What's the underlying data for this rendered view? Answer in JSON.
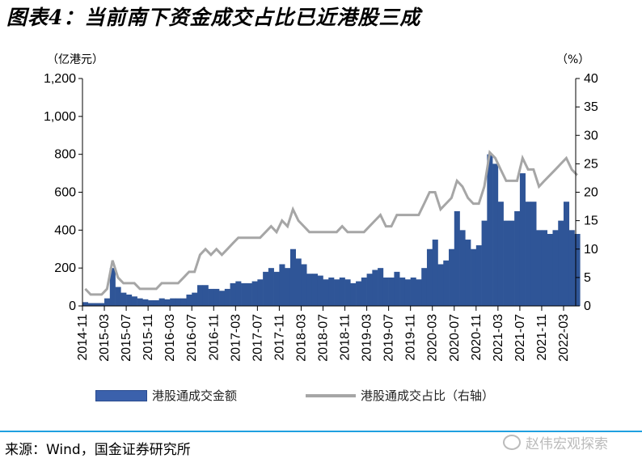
{
  "title": "图表4：当前南下资金成交占比已近港股三成",
  "source": "来源：Wind，国金证券研究所",
  "watermark": "赵伟宏观探索",
  "chart_data": {
    "type": "bar+line",
    "left_unit": "（亿港元）",
    "right_unit": "（%）",
    "ylim_left": [
      0,
      1200
    ],
    "ylim_right": [
      0,
      40
    ],
    "yticks_left": [
      "0",
      "200",
      "400",
      "600",
      "800",
      "1,000",
      "1,200"
    ],
    "yticks_right": [
      "0",
      "5",
      "10",
      "15",
      "20",
      "25",
      "30",
      "35",
      "40"
    ],
    "x_tick_labels": [
      "2014-11",
      "2015-03",
      "2015-07",
      "2015-11",
      "2016-03",
      "2016-07",
      "2016-11",
      "2017-03",
      "2017-07",
      "2017-11",
      "2018-03",
      "2018-07",
      "2018-11",
      "2019-03",
      "2019-07",
      "2019-11",
      "2020-03",
      "2020-07",
      "2020-11",
      "2021-03",
      "2021-07",
      "2021-11",
      "2022-03"
    ],
    "grid": false,
    "legend_position": "bottom",
    "colors": {
      "amount": "#2f5597",
      "ratio": "#a6a6a6"
    },
    "categories": [
      "2014-11",
      "2014-12",
      "2015-01",
      "2015-02",
      "2015-03",
      "2015-04",
      "2015-05",
      "2015-06",
      "2015-07",
      "2015-08",
      "2015-09",
      "2015-10",
      "2015-11",
      "2015-12",
      "2016-01",
      "2016-02",
      "2016-03",
      "2016-04",
      "2016-05",
      "2016-06",
      "2016-07",
      "2016-08",
      "2016-09",
      "2016-10",
      "2016-11",
      "2016-12",
      "2017-01",
      "2017-02",
      "2017-03",
      "2017-04",
      "2017-05",
      "2017-06",
      "2017-07",
      "2017-08",
      "2017-09",
      "2017-10",
      "2017-11",
      "2017-12",
      "2018-01",
      "2018-02",
      "2018-03",
      "2018-04",
      "2018-05",
      "2018-06",
      "2018-07",
      "2018-08",
      "2018-09",
      "2018-10",
      "2018-11",
      "2018-12",
      "2019-01",
      "2019-02",
      "2019-03",
      "2019-04",
      "2019-05",
      "2019-06",
      "2019-07",
      "2019-08",
      "2019-09",
      "2019-10",
      "2019-11",
      "2019-12",
      "2020-01",
      "2020-02",
      "2020-03",
      "2020-04",
      "2020-05",
      "2020-06",
      "2020-07",
      "2020-08",
      "2020-09",
      "2020-10",
      "2020-11",
      "2020-12",
      "2021-01",
      "2021-02",
      "2021-03",
      "2021-04",
      "2021-05",
      "2021-06",
      "2021-07",
      "2021-08",
      "2021-09",
      "2021-10",
      "2021-11",
      "2021-12",
      "2022-01",
      "2022-02",
      "2022-03",
      "2022-04",
      "2022-05"
    ],
    "series": [
      {
        "name": "港股通成交金额",
        "axis": "left",
        "values": [
          20,
          15,
          15,
          15,
          40,
          200,
          100,
          70,
          60,
          50,
          40,
          35,
          30,
          30,
          40,
          35,
          40,
          40,
          40,
          60,
          70,
          110,
          110,
          90,
          90,
          80,
          90,
          120,
          130,
          120,
          120,
          130,
          140,
          180,
          200,
          180,
          220,
          200,
          300,
          250,
          220,
          170,
          170,
          160,
          140,
          150,
          140,
          150,
          140,
          120,
          130,
          150,
          170,
          190,
          200,
          150,
          150,
          180,
          150,
          140,
          150,
          140,
          200,
          300,
          350,
          220,
          240,
          300,
          500,
          400,
          350,
          300,
          320,
          450,
          800,
          750,
          550,
          450,
          450,
          500,
          700,
          550,
          550,
          400,
          400,
          380,
          400,
          450,
          550,
          400,
          380
        ]
      },
      {
        "name": "港股通成交占比（右轴）",
        "axis": "right",
        "values": [
          3,
          2,
          2,
          2,
          3,
          8,
          5,
          4,
          4,
          4,
          3,
          3,
          3,
          3,
          4,
          4,
          4,
          4,
          5,
          6,
          6,
          9,
          10,
          9,
          10,
          9,
          10,
          11,
          12,
          12,
          12,
          12,
          12,
          13,
          14,
          13,
          15,
          14,
          17,
          15,
          14,
          13,
          13,
          13,
          13,
          13,
          13,
          14,
          13,
          13,
          13,
          13,
          14,
          15,
          16,
          14,
          14,
          16,
          16,
          16,
          16,
          16,
          18,
          20,
          20,
          17,
          18,
          19,
          22,
          21,
          19,
          18,
          18,
          21,
          27,
          26,
          24,
          22,
          22,
          22,
          26,
          24,
          24,
          21,
          22,
          23,
          24,
          25,
          26,
          24,
          23
        ]
      }
    ]
  }
}
